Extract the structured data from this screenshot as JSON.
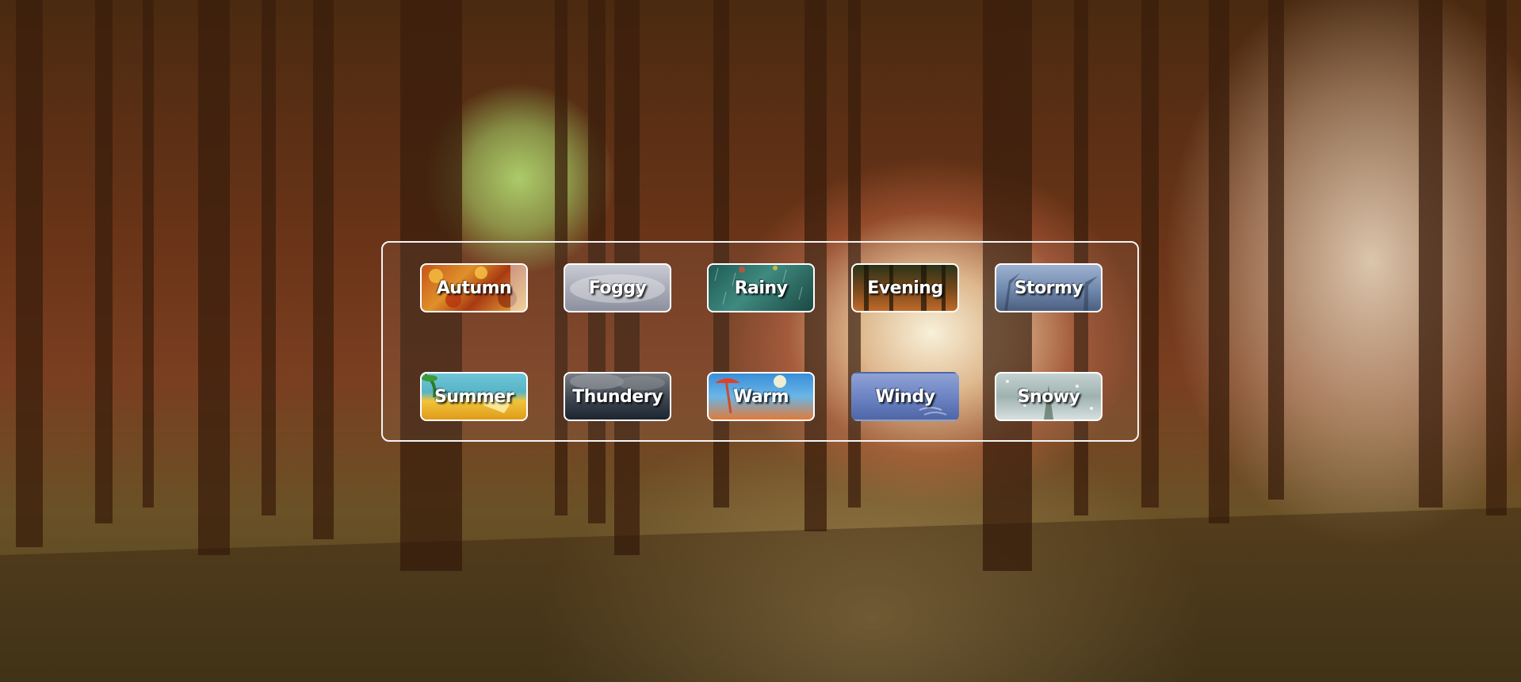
{
  "weather_menu": {
    "tiles": [
      {
        "label": "Autumn"
      },
      {
        "label": "Foggy"
      },
      {
        "label": "Rainy"
      },
      {
        "label": "Evening"
      },
      {
        "label": "Stormy"
      },
      {
        "label": "Summer"
      },
      {
        "label": "Thundery"
      },
      {
        "label": "Warm"
      },
      {
        "label": "Windy"
      },
      {
        "label": "Snowy"
      }
    ]
  }
}
